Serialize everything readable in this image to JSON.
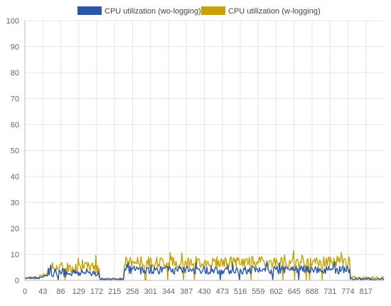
{
  "chart_data": {
    "type": "line",
    "title": "",
    "xlabel": "",
    "ylabel": "",
    "xlim": [
      0,
      860
    ],
    "ylim": [
      0,
      100
    ],
    "grid": true,
    "legend_position": "top",
    "x_ticks": [
      0,
      43,
      86,
      129,
      172,
      215,
      258,
      301,
      344,
      387,
      430,
      473,
      516,
      559,
      602,
      645,
      688,
      731,
      774,
      817
    ],
    "y_ticks": [
      0,
      10,
      20,
      30,
      40,
      50,
      60,
      70,
      80,
      90,
      100
    ],
    "series": [
      {
        "name": "CPU utilization (wo-logging)",
        "color": "#2b56a9",
        "segments": [
          {
            "x_start": 0,
            "x_end": 35,
            "level": 1
          },
          {
            "x_start": 35,
            "x_end": 55,
            "level": 1.5
          },
          {
            "x_start": 55,
            "x_end": 180,
            "level": 3
          },
          {
            "x_start": 180,
            "x_end": 238,
            "level": 0.5
          },
          {
            "x_start": 238,
            "x_end": 780,
            "level": 4
          },
          {
            "x_start": 780,
            "x_end": 860,
            "level": 0.5
          }
        ]
      },
      {
        "name": "CPU utilization (w-logging)",
        "color": "#c9a100",
        "segments": [
          {
            "x_start": 0,
            "x_end": 35,
            "level": 1
          },
          {
            "x_start": 35,
            "x_end": 55,
            "level": 2
          },
          {
            "x_start": 55,
            "x_end": 180,
            "level": 5
          },
          {
            "x_start": 180,
            "x_end": 238,
            "level": 0.5
          },
          {
            "x_start": 238,
            "x_end": 780,
            "level": 7
          },
          {
            "x_start": 780,
            "x_end": 860,
            "level": 1
          }
        ]
      }
    ]
  }
}
